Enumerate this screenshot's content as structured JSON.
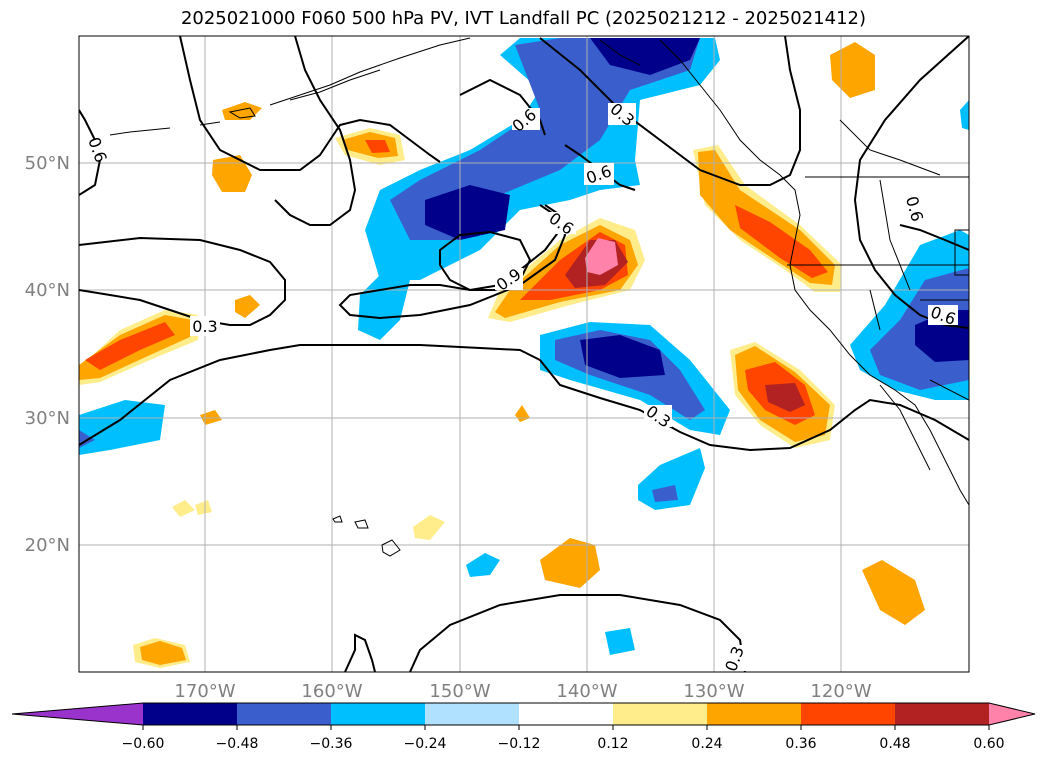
{
  "title": "2025021000 F060 500 hPa PV, IVT Landfall PC (2025021212 - 2025021412)",
  "map": {
    "lat_labels": [
      "50°N",
      "40°N",
      "30°N",
      "20°N"
    ],
    "lon_labels": [
      "170°W",
      "160°W",
      "150°W",
      "140°W",
      "130°W",
      "120°W"
    ],
    "contour_labels": [
      "0.6",
      "0.6",
      "0.3",
      "0.6",
      "0.6",
      "0.9",
      "0.3",
      "0.6",
      "0.6",
      "0.3",
      "0.3"
    ]
  },
  "colorbar": {
    "ticks": [
      "−0.60",
      "−0.48",
      "−0.36",
      "−0.24",
      "−0.12",
      "0.12",
      "0.24",
      "0.36",
      "0.48",
      "0.60"
    ],
    "colors": [
      "#9933cc",
      "#00008b",
      "#3a5fcd",
      "#00bfff",
      "#b0e2ff",
      "#ffffff",
      "#ffec8b",
      "#ffa500",
      "#ff4500",
      "#b22222",
      "#ff82ab"
    ]
  }
}
